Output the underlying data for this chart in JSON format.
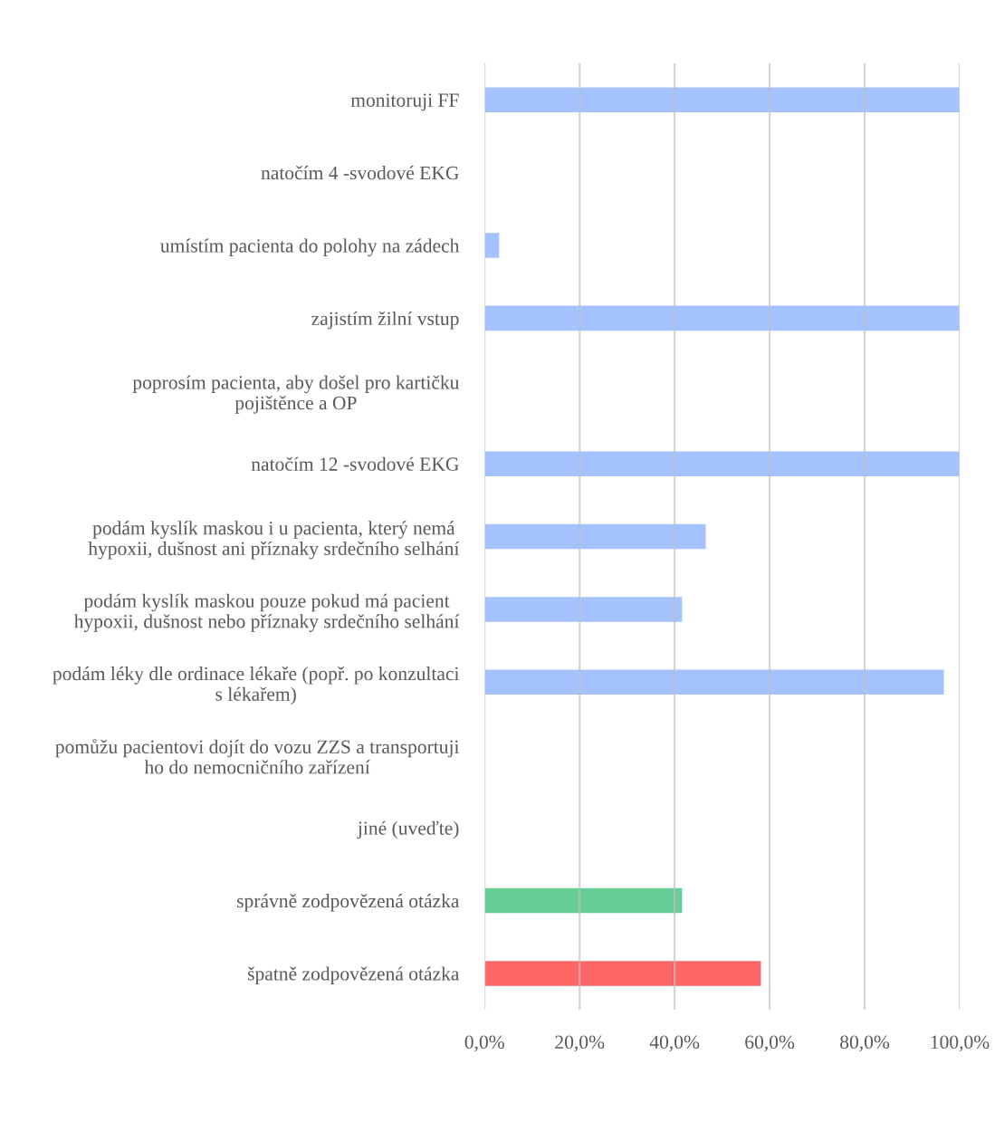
{
  "chart_data": {
    "type": "bar",
    "orientation": "horizontal",
    "categories": [
      "monitoruji FF",
      "natočím 4 -svodové EKG",
      "umístím pacienta do polohy na zádech",
      "zajistím žilní vstup",
      "poprosím pacienta, aby došel pro kartičku\npojištěnce a OP",
      "natočím 12 -svodové EKG",
      "podám kyslík maskou i u pacienta, který nemá\nhypoxii, dušnost ani příznaky srdečního selhání",
      "podám kyslík maskou pouze pokud má pacient\nhypoxii, dušnost nebo příznaky srdečního selhání",
      "podám léky dle ordinace lékaře (popř. po konzultaci\ns lékařem)",
      "pomůžu pacientovi dojít do vozu ZZS a transportuji\nho do nemocničního zařízení",
      "jiné (uveďte)",
      "správně zodpovězená otázka",
      "špatně zodpovězená otázka"
    ],
    "values": [
      100,
      0,
      3.2,
      100,
      0,
      100,
      46.7,
      41.7,
      96.8,
      0,
      0,
      41.7,
      58.3
    ],
    "colors": [
      "#a4c2fe",
      null,
      "#a4c2fe",
      "#a4c2fe",
      null,
      "#a4c2fe",
      "#a4c2fe",
      "#a4c2fe",
      "#a4c2fe",
      null,
      null,
      "#66cd96",
      "#ff6666"
    ],
    "xlim": [
      0,
      100
    ],
    "xticks": [
      {
        "value": 0,
        "label": "0,0%"
      },
      {
        "value": 20,
        "label": "20,0%"
      },
      {
        "value": 40,
        "label": "40,0%"
      },
      {
        "value": 60,
        "label": "60,0%"
      },
      {
        "value": 80,
        "label": "80,0%"
      },
      {
        "value": 100,
        "label": "100,0%"
      }
    ],
    "grid": "x"
  }
}
